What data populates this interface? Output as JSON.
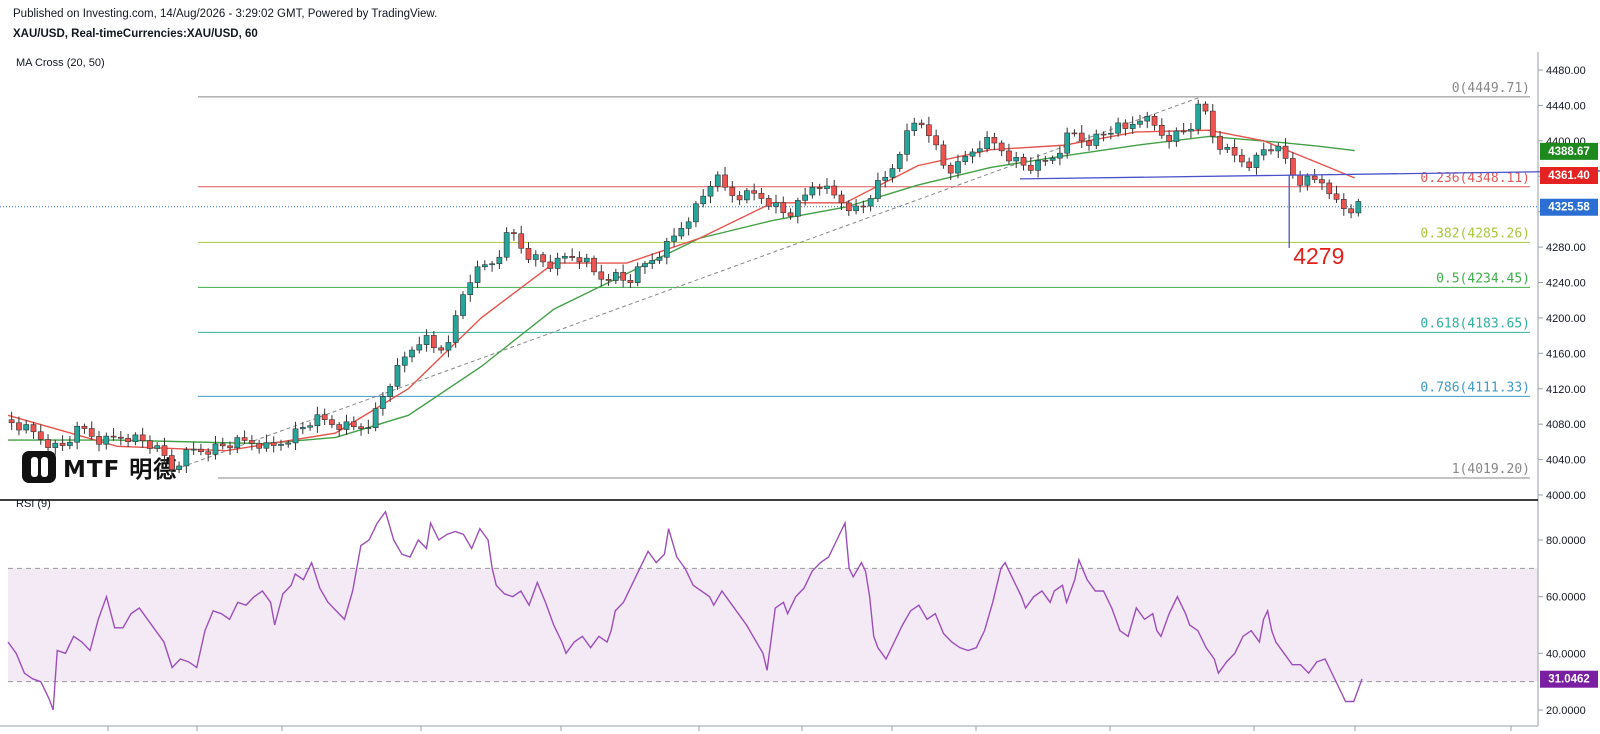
{
  "header": {
    "published": "Published on Investing.com, 14/Aug/2026 - 3:29:02 GMT, Powered by TradingView.",
    "symbol": "XAU/USD, Real-timeCurrencies:XAU/USD, 60"
  },
  "indicators": {
    "ma_label": "MA Cross (20, 50)",
    "rsi_label": "RSI (9)"
  },
  "logo": {
    "text": "MTF 明德"
  },
  "colors": {
    "up": "#26a69a",
    "down": "#ef5350",
    "ma_fast": "#e5534b",
    "ma_slow": "#43a047",
    "rsi": "#9c4fb8",
    "trendline": "#4a52c9",
    "annotation": "#e0201b"
  },
  "chart_data": [
    {
      "type": "candlestick",
      "title": "XAU/USD, 60",
      "y_ticks": [
        "4480.00",
        "4440.00",
        "4400.00",
        "4360.00",
        "4320.00",
        "4280.00",
        "4240.00",
        "4200.00",
        "4160.00",
        "4120.00",
        "4080.00",
        "4040.00",
        "4000.00"
      ],
      "ylim": [
        4000,
        4480
      ],
      "close_path": [
        [
          0,
          4085
        ],
        [
          8,
          4068
        ],
        [
          14,
          4052
        ],
        [
          20,
          4075
        ],
        [
          26,
          4060
        ],
        [
          32,
          4068
        ],
        [
          38,
          4060
        ],
        [
          43,
          4042
        ],
        [
          44,
          4026
        ],
        [
          50,
          4050
        ],
        [
          56,
          4053
        ],
        [
          62,
          4058
        ],
        [
          68,
          4060
        ],
        [
          72,
          4052
        ],
        [
          78,
          4068
        ],
        [
          84,
          4085
        ],
        [
          90,
          4080
        ],
        [
          96,
          4075
        ],
        [
          100,
          4085
        ],
        [
          104,
          4120
        ],
        [
          110,
          4160
        ],
        [
          114,
          4180
        ],
        [
          118,
          4160
        ],
        [
          122,
          4185
        ],
        [
          126,
          4240
        ],
        [
          130,
          4255
        ],
        [
          134,
          4265
        ],
        [
          138,
          4300
        ],
        [
          142,
          4275
        ],
        [
          146,
          4265
        ],
        [
          150,
          4258
        ],
        [
          154,
          4270
        ],
        [
          158,
          4268
        ],
        [
          162,
          4245
        ],
        [
          166,
          4250
        ],
        [
          170,
          4240
        ],
        [
          174,
          4255
        ],
        [
          178,
          4270
        ],
        [
          182,
          4285
        ],
        [
          186,
          4310
        ],
        [
          190,
          4330
        ],
        [
          194,
          4360
        ],
        [
          198,
          4340
        ],
        [
          202,
          4338
        ],
        [
          206,
          4340
        ],
        [
          210,
          4330
        ],
        [
          214,
          4315
        ],
        [
          218,
          4330
        ],
        [
          222,
          4355
        ],
        [
          226,
          4340
        ],
        [
          230,
          4330
        ],
        [
          234,
          4320
        ],
        [
          238,
          4345
        ],
        [
          242,
          4360
        ],
        [
          246,
          4400
        ],
        [
          250,
          4425
        ],
        [
          254,
          4408
        ],
        [
          256,
          4375
        ],
        [
          260,
          4365
        ],
        [
          264,
          4385
        ],
        [
          268,
          4400
        ],
        [
          272,
          4395
        ],
        [
          276,
          4380
        ],
        [
          280,
          4370
        ],
        [
          284,
          4372
        ],
        [
          288,
          4385
        ],
        [
          292,
          4410
        ],
        [
          296,
          4400
        ],
        [
          300,
          4405
        ],
        [
          304,
          4415
        ],
        [
          308,
          4410
        ],
        [
          310,
          4430
        ],
        [
          314,
          4420
        ],
        [
          318,
          4405
        ],
        [
          322,
          4408
        ],
        [
          326,
          4420
        ],
        [
          328,
          4450
        ],
        [
          330,
          4412
        ],
        [
          334,
          4390
        ],
        [
          338,
          4380
        ],
        [
          342,
          4375
        ],
        [
          346,
          4395
        ],
        [
          350,
          4385
        ],
        [
          352,
          4370
        ],
        [
          354,
          4355
        ],
        [
          358,
          4355
        ],
        [
          362,
          4355
        ],
        [
          365,
          4330
        ],
        [
          368,
          4320
        ],
        [
          370,
          4325
        ]
      ],
      "x_max": 372,
      "dip_low": 4279,
      "ma_fast": [
        [
          0,
          4090
        ],
        [
          30,
          4055
        ],
        [
          60,
          4050
        ],
        [
          90,
          4070
        ],
        [
          110,
          4120
        ],
        [
          130,
          4200
        ],
        [
          150,
          4262
        ],
        [
          170,
          4262
        ],
        [
          190,
          4290
        ],
        [
          210,
          4330
        ],
        [
          230,
          4330
        ],
        [
          250,
          4372
        ],
        [
          270,
          4390
        ],
        [
          290,
          4395
        ],
        [
          310,
          4410
        ],
        [
          330,
          4412
        ],
        [
          345,
          4400
        ],
        [
          360,
          4375
        ],
        [
          370,
          4358
        ]
      ],
      "ma_slow": [
        [
          0,
          4062
        ],
        [
          30,
          4062
        ],
        [
          50,
          4060
        ],
        [
          70,
          4058
        ],
        [
          90,
          4065
        ],
        [
          110,
          4090
        ],
        [
          130,
          4145
        ],
        [
          150,
          4210
        ],
        [
          170,
          4250
        ],
        [
          190,
          4290
        ],
        [
          210,
          4310
        ],
        [
          230,
          4325
        ],
        [
          250,
          4350
        ],
        [
          270,
          4370
        ],
        [
          290,
          4383
        ],
        [
          310,
          4395
        ],
        [
          330,
          4405
        ],
        [
          350,
          4398
        ],
        [
          360,
          4394
        ],
        [
          370,
          4389
        ]
      ],
      "fibonacci": [
        {
          "label": "0(4449.71)",
          "value": 4449.71,
          "color": "#888888"
        },
        {
          "label": "0.236(4348.11)",
          "value": 4348.11,
          "color": "#e05a5a"
        },
        {
          "label": "0.382(4285.26)",
          "value": 4285.26,
          "color": "#a8c83c"
        },
        {
          "label": "0.5(4234.45)",
          "value": 4234.45,
          "color": "#3fae4a"
        },
        {
          "label": "0.618(4183.65)",
          "value": 4183.65,
          "color": "#2fb0a0"
        },
        {
          "label": "0.786(4111.33)",
          "value": 4111.33,
          "color": "#3e9bc8"
        },
        {
          "label": "1(4019.20)",
          "value": 4019.2,
          "color": "#888888"
        }
      ],
      "price_labels": [
        {
          "text": "4388.67",
          "value": 4388.67,
          "color": "#1e8a1e"
        },
        {
          "text": "4361.40",
          "value": 4361.4,
          "color": "#e52222"
        },
        {
          "text": "4325.58",
          "value": 4325.58,
          "color": "#2b6fd4"
        }
      ],
      "annotation": {
        "text": "4279",
        "value": 4279
      }
    },
    {
      "type": "line",
      "title": "RSI (9)",
      "y_ticks": [
        "80.0000",
        "60.0000",
        "40.0000",
        "20.0000"
      ],
      "ylim": [
        15,
        95
      ],
      "overbought": 70,
      "oversold": 30,
      "current_label": "31.0462",
      "current": 31.0462,
      "values": [
        [
          0,
          44
        ],
        [
          4,
          40
        ],
        [
          8,
          33
        ],
        [
          12,
          31
        ],
        [
          16,
          30
        ],
        [
          20,
          24
        ],
        [
          22,
          20
        ],
        [
          24,
          41
        ],
        [
          28,
          40
        ],
        [
          32,
          46
        ],
        [
          36,
          44
        ],
        [
          40,
          41
        ],
        [
          44,
          52
        ],
        [
          48,
          60
        ],
        [
          52,
          49
        ],
        [
          56,
          49
        ],
        [
          60,
          54
        ],
        [
          64,
          56
        ],
        [
          68,
          52
        ],
        [
          72,
          48
        ],
        [
          76,
          44
        ],
        [
          80,
          35
        ],
        [
          84,
          38
        ],
        [
          88,
          37
        ],
        [
          92,
          35
        ],
        [
          96,
          48
        ],
        [
          100,
          55
        ],
        [
          104,
          54
        ],
        [
          108,
          52
        ],
        [
          112,
          58
        ],
        [
          116,
          57
        ],
        [
          120,
          60
        ],
        [
          124,
          62
        ],
        [
          128,
          58
        ],
        [
          130,
          50
        ],
        [
          134,
          61
        ],
        [
          138,
          64
        ],
        [
          140,
          68
        ],
        [
          144,
          66
        ],
        [
          148,
          72
        ],
        [
          152,
          63
        ],
        [
          156,
          58
        ],
        [
          160,
          55
        ],
        [
          164,
          52
        ],
        [
          168,
          62
        ],
        [
          172,
          78
        ],
        [
          176,
          80
        ],
        [
          180,
          86
        ],
        [
          184,
          90
        ],
        [
          188,
          80
        ],
        [
          192,
          75
        ],
        [
          196,
          74
        ],
        [
          200,
          80
        ],
        [
          204,
          77
        ],
        [
          206,
          86
        ],
        [
          210,
          80
        ],
        [
          214,
          82
        ],
        [
          218,
          83
        ],
        [
          222,
          82
        ],
        [
          226,
          77
        ],
        [
          230,
          84
        ],
        [
          234,
          80
        ],
        [
          236,
          70
        ],
        [
          238,
          64
        ],
        [
          242,
          61
        ],
        [
          246,
          60
        ],
        [
          250,
          62
        ],
        [
          254,
          57
        ],
        [
          258,
          65
        ],
        [
          262,
          58
        ],
        [
          266,
          50
        ],
        [
          270,
          44
        ],
        [
          272,
          40
        ],
        [
          276,
          44
        ],
        [
          280,
          46
        ],
        [
          284,
          42
        ],
        [
          288,
          46
        ],
        [
          292,
          44
        ],
        [
          294,
          48
        ],
        [
          296,
          55
        ],
        [
          300,
          58
        ],
        [
          304,
          64
        ],
        [
          308,
          70
        ],
        [
          312,
          76
        ],
        [
          316,
          72
        ],
        [
          320,
          75
        ],
        [
          322,
          84
        ],
        [
          326,
          74
        ],
        [
          330,
          70
        ],
        [
          334,
          64
        ],
        [
          338,
          62
        ],
        [
          342,
          60
        ],
        [
          344,
          57
        ],
        [
          348,
          62
        ],
        [
          352,
          58
        ],
        [
          356,
          54
        ],
        [
          360,
          50
        ],
        [
          364,
          45
        ],
        [
          368,
          40
        ],
        [
          370,
          34
        ],
        [
          374,
          56
        ],
        [
          378,
          58
        ],
        [
          380,
          54
        ],
        [
          384,
          60
        ],
        [
          388,
          63
        ],
        [
          392,
          69
        ],
        [
          396,
          72
        ],
        [
          400,
          74
        ],
        [
          404,
          80
        ],
        [
          408,
          86
        ],
        [
          410,
          70
        ],
        [
          412,
          67
        ],
        [
          416,
          72
        ],
        [
          418,
          69
        ],
        [
          420,
          60
        ],
        [
          422,
          46
        ],
        [
          424,
          42
        ],
        [
          428,
          38
        ],
        [
          432,
          44
        ],
        [
          436,
          50
        ],
        [
          440,
          55
        ],
        [
          444,
          57
        ],
        [
          448,
          52
        ],
        [
          452,
          54
        ],
        [
          456,
          47
        ],
        [
          460,
          44
        ],
        [
          464,
          42
        ],
        [
          468,
          41
        ],
        [
          472,
          42
        ],
        [
          476,
          48
        ],
        [
          480,
          58
        ],
        [
          484,
          70
        ],
        [
          486,
          72
        ],
        [
          490,
          66
        ],
        [
          494,
          60
        ],
        [
          496,
          56
        ],
        [
          500,
          60
        ],
        [
          504,
          62
        ],
        [
          508,
          58
        ],
        [
          510,
          62
        ],
        [
          514,
          64
        ],
        [
          516,
          58
        ],
        [
          520,
          66
        ],
        [
          522,
          73
        ],
        [
          526,
          66
        ],
        [
          530,
          62
        ],
        [
          534,
          62
        ],
        [
          538,
          56
        ],
        [
          542,
          48
        ],
        [
          546,
          46
        ],
        [
          550,
          56
        ],
        [
          554,
          52
        ],
        [
          558,
          54
        ],
        [
          560,
          48
        ],
        [
          562,
          46
        ],
        [
          566,
          54
        ],
        [
          570,
          60
        ],
        [
          574,
          54
        ],
        [
          576,
          50
        ],
        [
          580,
          48
        ],
        [
          584,
          42
        ],
        [
          588,
          38
        ],
        [
          590,
          33
        ],
        [
          594,
          37
        ],
        [
          598,
          40
        ],
        [
          602,
          46
        ],
        [
          606,
          48
        ],
        [
          610,
          44
        ],
        [
          612,
          52
        ],
        [
          614,
          55
        ],
        [
          616,
          48
        ],
        [
          618,
          44
        ],
        [
          622,
          40
        ],
        [
          626,
          36
        ],
        [
          630,
          36
        ],
        [
          634,
          33
        ],
        [
          638,
          37
        ],
        [
          642,
          38
        ],
        [
          646,
          32
        ],
        [
          650,
          26
        ],
        [
          652,
          23
        ],
        [
          656,
          23
        ],
        [
          660,
          31
        ]
      ],
      "x_max": 660
    }
  ]
}
